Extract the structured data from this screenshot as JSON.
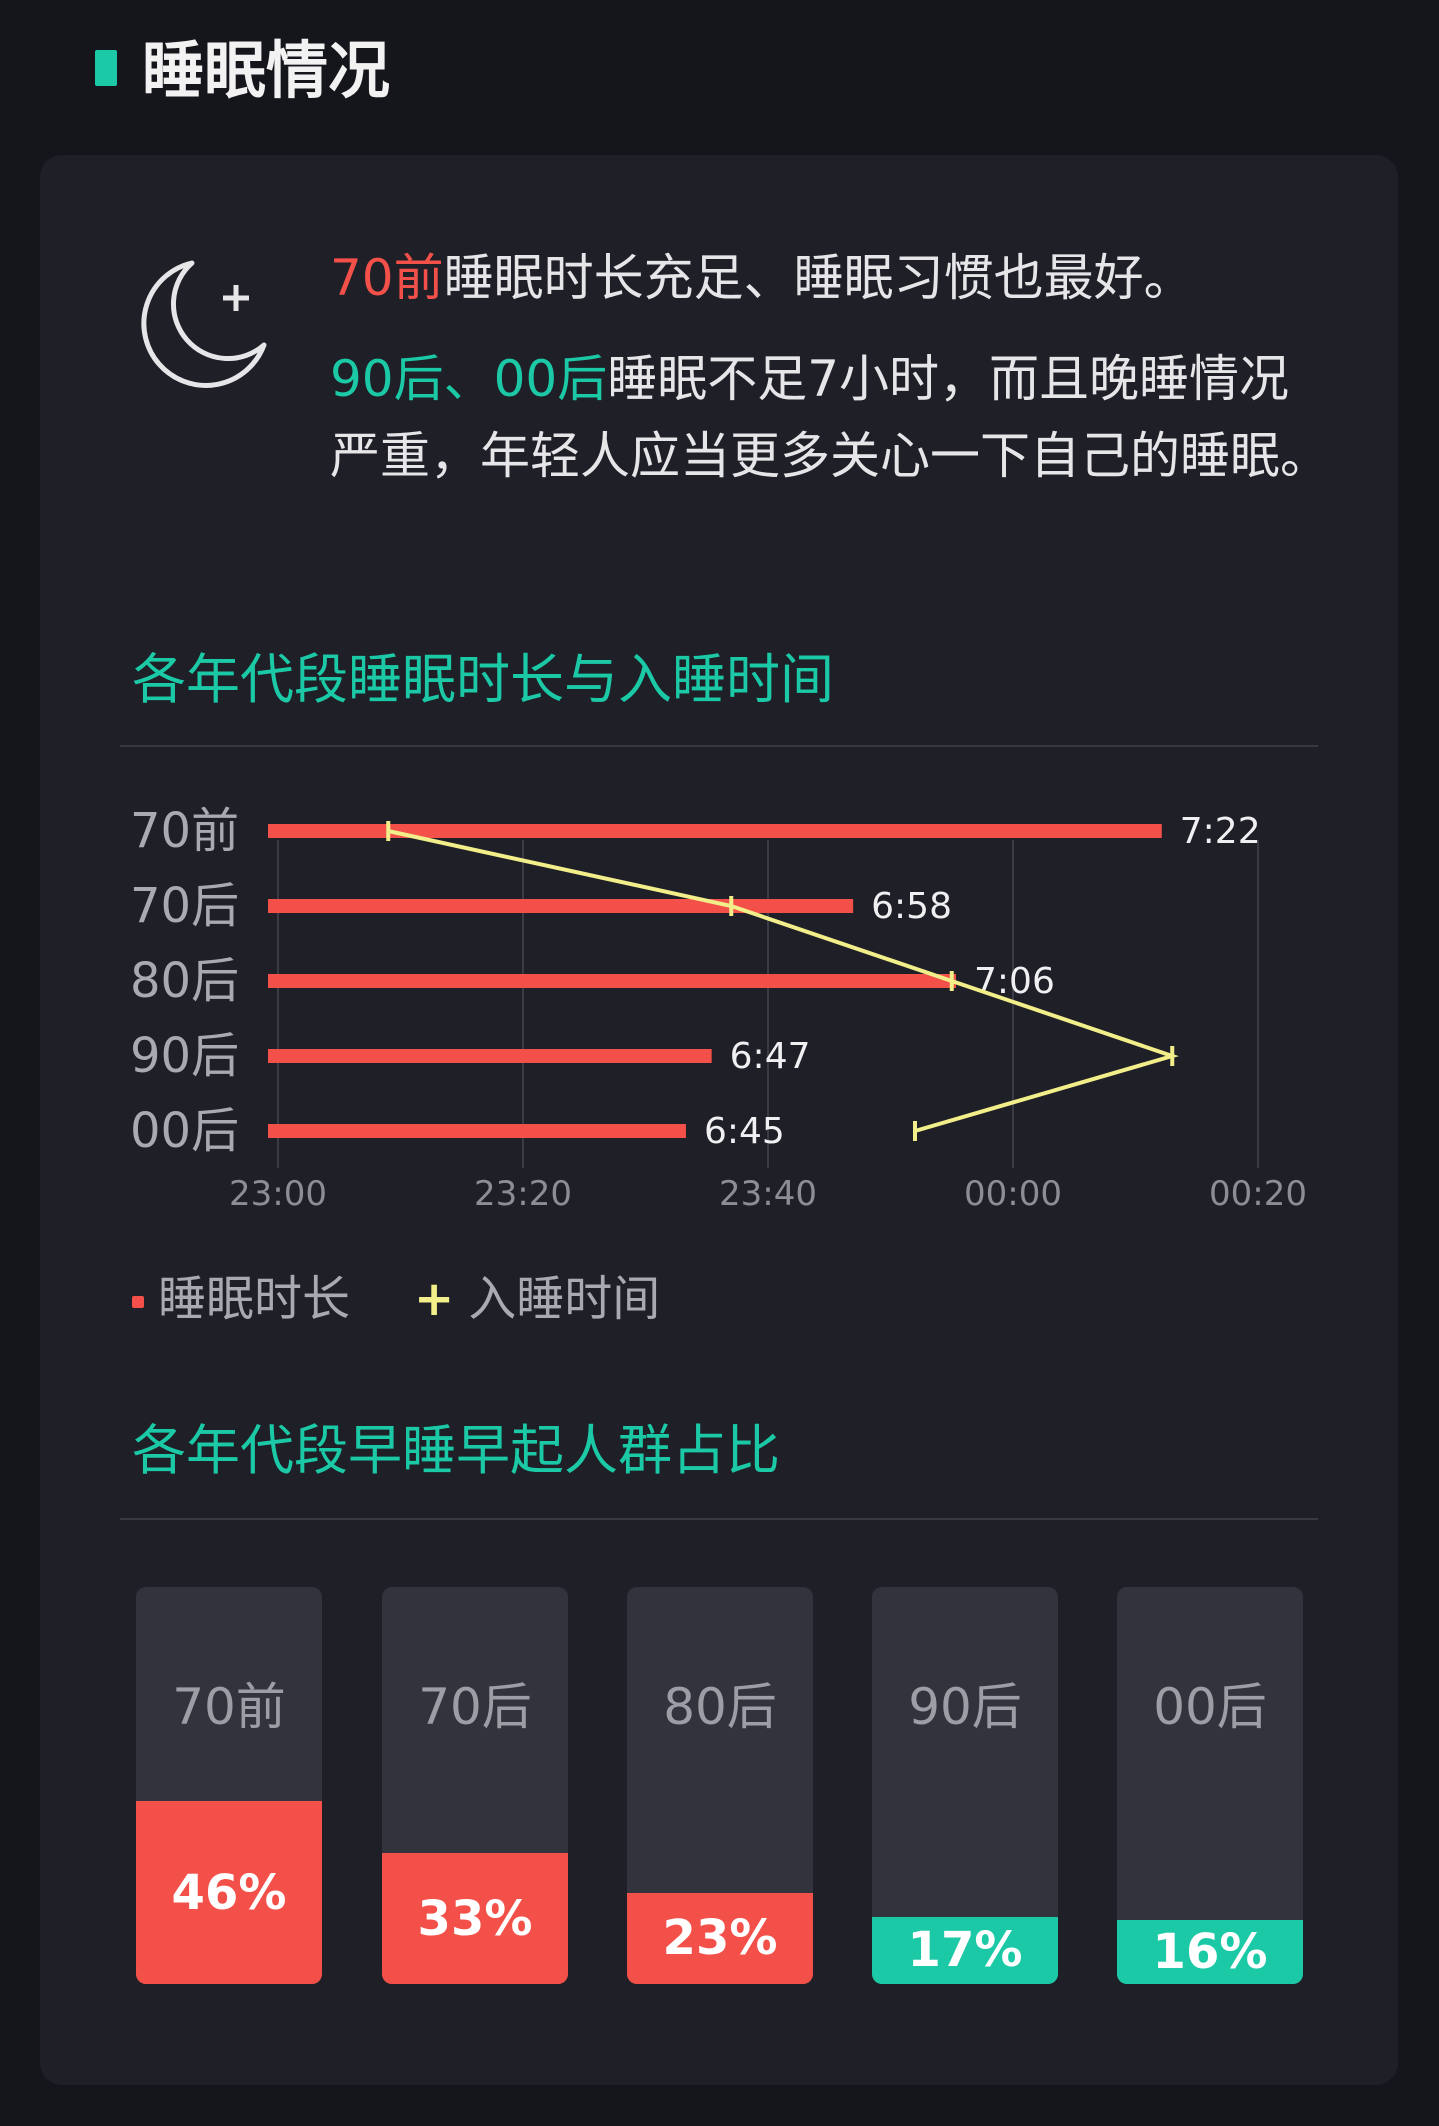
{
  "header": {
    "title": "睡眠情况"
  },
  "summary": {
    "line1_highlight": "70前",
    "line1_text": "睡眠时长充足、睡眠习惯也最好。",
    "line2_highlight": "90后、00后",
    "line2_text": "睡眠不足7小时，而且晚睡情况严重，年轻人应当更多关心一下自己的睡眠。",
    "icon": "moon-plus-icon"
  },
  "colors": {
    "background": "#15161b",
    "card": "#1e1f27",
    "accent_green": "#1cc9a6",
    "red": "#f4504a",
    "yellow": "#f2ee8a"
  },
  "section1": {
    "title": "各年代段睡眠时长与入睡时间"
  },
  "chart_data": [
    {
      "type": "bar+line",
      "title": "各年代段睡眠时长与入睡时间",
      "categories": [
        "70前",
        "70后",
        "80后",
        "90后",
        "00后"
      ],
      "x_ticks": [
        "23:00",
        "23:20",
        "23:40",
        "00:00",
        "00:20"
      ],
      "x_range": [
        "23:00",
        "00:20"
      ],
      "grid": "vertical",
      "legend_position": "bottom-left",
      "series": [
        {
          "name": "睡眠时长",
          "type": "bar",
          "color": "#f4504a",
          "values": [
            "7:22",
            "6:58",
            "7:06",
            "6:47",
            "6:45"
          ],
          "labels": [
            "7:22",
            "6:58",
            "7:06",
            "6:47",
            "6:45"
          ]
        },
        {
          "name": "入睡时间",
          "type": "line",
          "color": "#f2ee8a",
          "values": [
            "23:09",
            "23:37",
            "23:55",
            "00:13",
            "23:52"
          ]
        }
      ]
    },
    {
      "type": "bar",
      "title": "各年代段早睡早起人群占比",
      "categories": [
        "70前",
        "70后",
        "80后",
        "90后",
        "00后"
      ],
      "values": [
        46,
        33,
        23,
        17,
        16
      ],
      "labels": [
        "46%",
        "33%",
        "23%",
        "17%",
        "16%"
      ],
      "colors": [
        "#f4504a",
        "#f4504a",
        "#f4504a",
        "#1cc9a6",
        "#1cc9a6"
      ],
      "ylim": [
        0,
        100
      ]
    }
  ],
  "legend": {
    "duration": "睡眠时长",
    "bedtime": "入睡时间"
  },
  "section2": {
    "title": "各年代段早睡早起人群占比"
  }
}
